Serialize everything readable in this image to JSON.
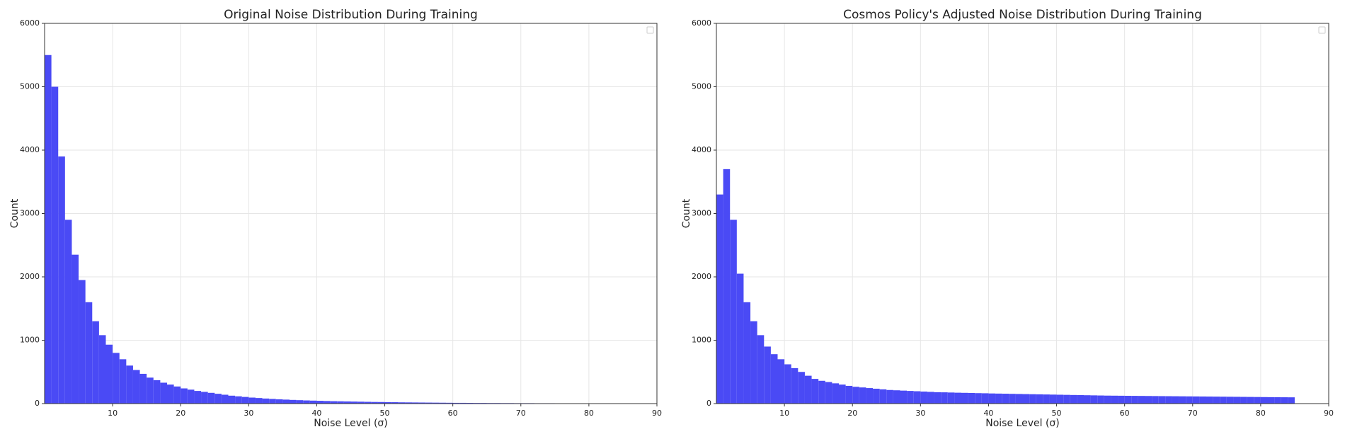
{
  "chart_data": [
    {
      "type": "histogram",
      "title": "Original Noise Distribution During Training",
      "xlabel": "Noise Level (σ)",
      "ylabel": "Count",
      "color": "#4a4af5",
      "bins": [
        0,
        1,
        2,
        3,
        4,
        5,
        6,
        7,
        8,
        9,
        10,
        11,
        12,
        13,
        14,
        15,
        16,
        17,
        18,
        19,
        20,
        21,
        22,
        23,
        24,
        25,
        26,
        27,
        28,
        29,
        30,
        31,
        32,
        33,
        34,
        35,
        36,
        37,
        38,
        39,
        40,
        41,
        42,
        43,
        44,
        45,
        46,
        47,
        48,
        49,
        50,
        51,
        52,
        53,
        54,
        55,
        56,
        57,
        58,
        59,
        60,
        61,
        62,
        63,
        64,
        65,
        66,
        67,
        68,
        69,
        70,
        71,
        72,
        73,
        74,
        75,
        76,
        77,
        78,
        79,
        80,
        81,
        82,
        83,
        84,
        85,
        86,
        87,
        88
      ],
      "values": [
        5500,
        5000,
        3900,
        2900,
        2350,
        1950,
        1600,
        1300,
        1080,
        930,
        800,
        700,
        600,
        530,
        470,
        410,
        370,
        330,
        300,
        270,
        240,
        220,
        200,
        185,
        170,
        155,
        140,
        125,
        115,
        105,
        95,
        88,
        80,
        74,
        68,
        63,
        58,
        54,
        50,
        47,
        44,
        41,
        38,
        36,
        34,
        32,
        30,
        28,
        26,
        25,
        23,
        22,
        20,
        19,
        18,
        17,
        16,
        15,
        14,
        13,
        12,
        12,
        11,
        10,
        10,
        9,
        9,
        8,
        8,
        7,
        7,
        7,
        6,
        6,
        6,
        5,
        5,
        5,
        4,
        4,
        4,
        4,
        4,
        3,
        3,
        3,
        3,
        2
      ],
      "xlim": [
        0,
        90
      ],
      "xticks": [
        10,
        20,
        30,
        40,
        50,
        60,
        70,
        80,
        90
      ],
      "ylim": [
        0,
        6000
      ],
      "yticks": [
        0,
        1000,
        2000,
        3000,
        4000,
        5000,
        6000
      ],
      "grid": true
    },
    {
      "type": "histogram",
      "title": "Cosmos Policy's Adjusted Noise Distribution During Training",
      "xlabel": "Noise Level (σ)",
      "ylabel": "Count",
      "color": "#4a4af5",
      "bins": [
        0,
        1,
        2,
        3,
        4,
        5,
        6,
        7,
        8,
        9,
        10,
        11,
        12,
        13,
        14,
        15,
        16,
        17,
        18,
        19,
        20,
        21,
        22,
        23,
        24,
        25,
        26,
        27,
        28,
        29,
        30,
        31,
        32,
        33,
        34,
        35,
        36,
        37,
        38,
        39,
        40,
        41,
        42,
        43,
        44,
        45,
        46,
        47,
        48,
        49,
        50,
        51,
        52,
        53,
        54,
        55,
        56,
        57,
        58,
        59,
        60,
        61,
        62,
        63,
        64,
        65,
        66,
        67,
        68,
        69,
        70,
        71,
        72,
        73,
        74,
        75,
        76,
        77,
        78,
        79,
        80,
        81,
        82,
        83,
        84,
        85
      ],
      "values": [
        3300,
        3700,
        2900,
        2050,
        1600,
        1300,
        1080,
        900,
        780,
        700,
        620,
        560,
        500,
        440,
        390,
        360,
        340,
        320,
        300,
        280,
        265,
        255,
        245,
        235,
        225,
        215,
        210,
        205,
        200,
        195,
        190,
        185,
        180,
        178,
        175,
        172,
        170,
        168,
        165,
        163,
        160,
        158,
        156,
        154,
        152,
        150,
        148,
        146,
        144,
        142,
        140,
        138,
        136,
        134,
        132,
        130,
        128,
        126,
        125,
        124,
        123,
        122,
        121,
        120,
        119,
        118,
        117,
        116,
        115,
        114,
        113,
        112,
        111,
        110,
        109,
        108,
        107,
        106,
        105,
        104,
        103,
        102,
        101,
        100,
        99
      ],
      "xlim": [
        0,
        90
      ],
      "xticks": [
        10,
        20,
        30,
        40,
        50,
        60,
        70,
        80,
        90
      ],
      "ylim": [
        0,
        6000
      ],
      "yticks": [
        0,
        1000,
        2000,
        3000,
        4000,
        5000,
        6000
      ],
      "grid": true
    }
  ]
}
